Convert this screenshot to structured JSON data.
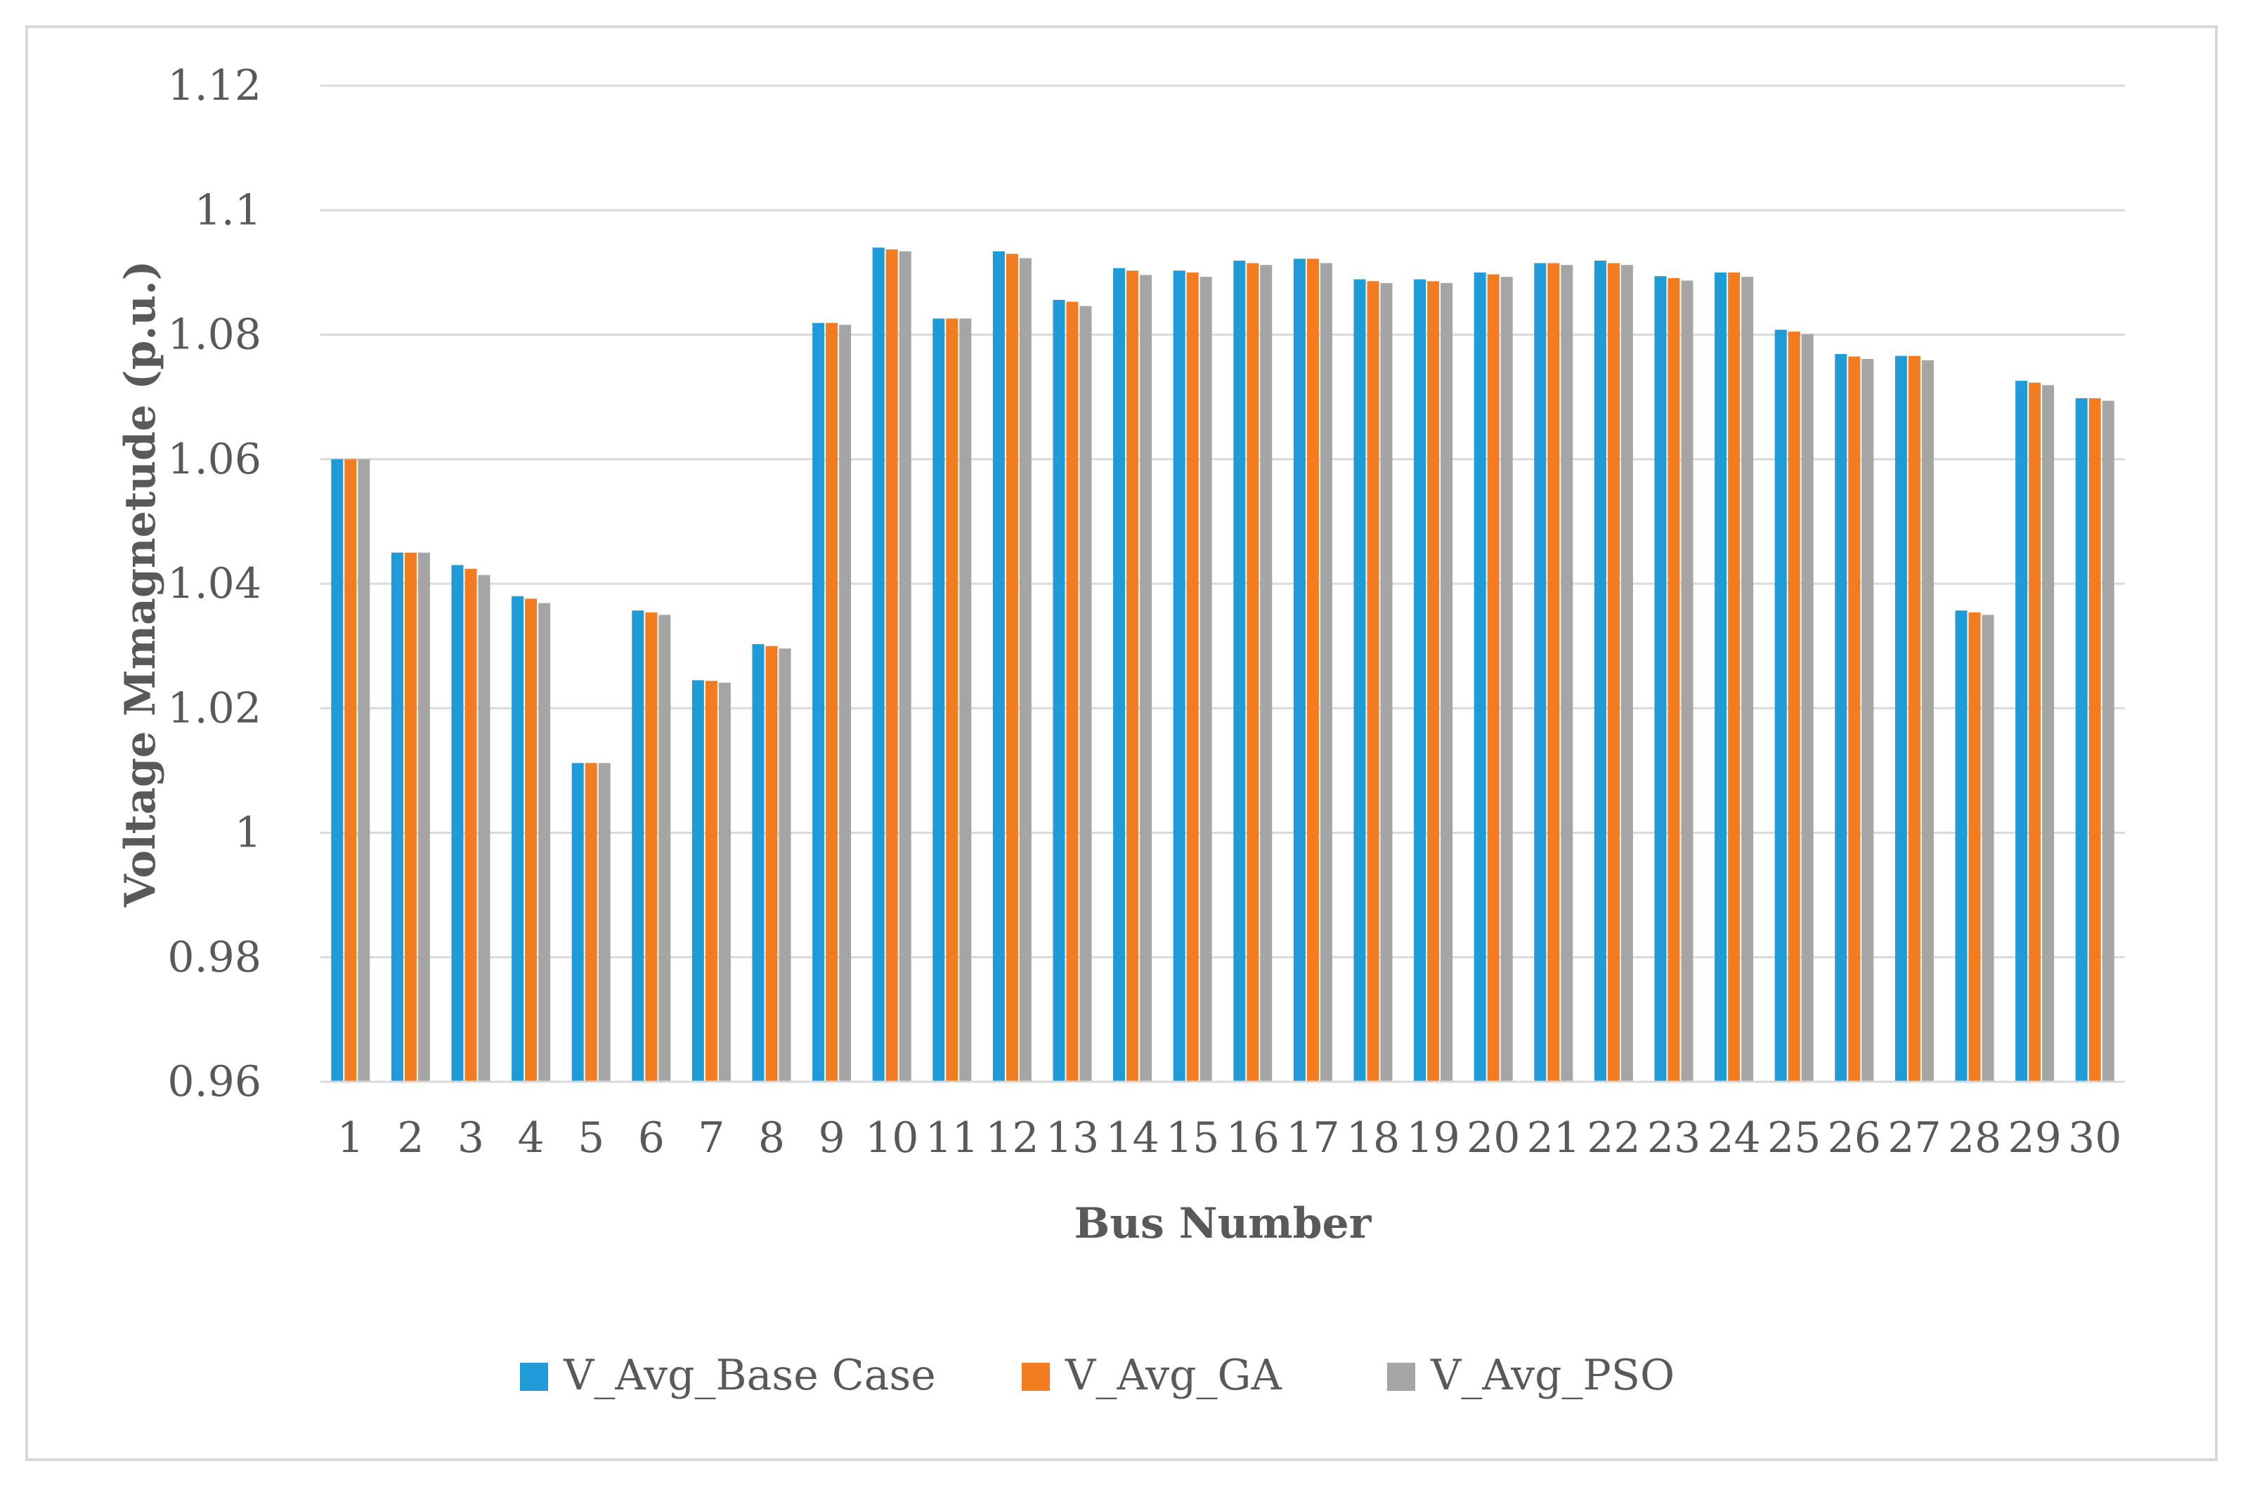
{
  "chart_data": {
    "type": "bar",
    "title": "",
    "xlabel": "Bus Number",
    "ylabel": "Voltage Mmagnetude (p.u.)",
    "ylim": [
      0.96,
      1.12
    ],
    "yticks": [
      0.96,
      0.98,
      1,
      1.02,
      1.04,
      1.06,
      1.08,
      1.1,
      1.12
    ],
    "ytick_labels": [
      "0.96",
      "0.98",
      "1",
      "1.02",
      "1.04",
      "1.06",
      "1.08",
      "1.1",
      "1.12"
    ],
    "grid": true,
    "legend_position": "bottom",
    "categories": [
      "1",
      "2",
      "3",
      "4",
      "5",
      "6",
      "7",
      "8",
      "9",
      "10",
      "11",
      "12",
      "13",
      "14",
      "15",
      "16",
      "17",
      "18",
      "19",
      "20",
      "21",
      "22",
      "23",
      "24",
      "25",
      "26",
      "27",
      "28",
      "29",
      "30"
    ],
    "series": [
      {
        "name": "V_Avg_Base Case",
        "color": "#1f9bd7",
        "values": [
          1.06,
          1.045,
          1.043,
          1.038,
          1.0112,
          1.0357,
          1.0245,
          1.0303,
          1.0819,
          1.094,
          1.0826,
          1.0934,
          1.0856,
          1.0907,
          1.0903,
          1.0919,
          1.0922,
          1.0889,
          1.0889,
          1.09,
          1.0915,
          1.0919,
          1.0894,
          1.09,
          1.0808,
          1.0769,
          1.0766,
          1.0357,
          1.0726,
          1.0698
        ]
      },
      {
        "name": "V_Avg_GA",
        "color": "#f47c20",
        "values": [
          1.06,
          1.045,
          1.0424,
          1.0376,
          1.0112,
          1.0354,
          1.0244,
          1.03,
          1.0819,
          1.0937,
          1.0826,
          1.093,
          1.0853,
          1.0903,
          1.09,
          1.0915,
          1.0922,
          1.0886,
          1.0886,
          1.0897,
          1.0915,
          1.0915,
          1.0891,
          1.09,
          1.0805,
          1.0765,
          1.0766,
          1.0354,
          1.0723,
          1.0698
        ]
      },
      {
        "name": "V_Avg_PSO",
        "color": "#a5a5a5",
        "values": [
          1.06,
          1.045,
          1.0414,
          1.0369,
          1.0112,
          1.035,
          1.0241,
          1.0296,
          1.0816,
          1.0934,
          1.0826,
          1.0923,
          1.0846,
          1.0896,
          1.0893,
          1.0912,
          1.0915,
          1.0883,
          1.0883,
          1.0893,
          1.0912,
          1.0912,
          1.0887,
          1.0893,
          1.0801,
          1.0761,
          1.0759,
          1.035,
          1.0719,
          1.0694
        ]
      }
    ]
  }
}
